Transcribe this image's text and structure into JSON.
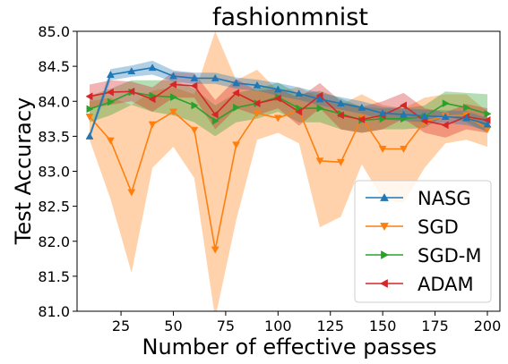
{
  "chart_data": {
    "type": "line",
    "title": "fashionmnist",
    "xlabel": "Number of effective passes",
    "ylabel": "Test Accuracy",
    "xlim": [
      4,
      206
    ],
    "ylim": [
      81.0,
      85.0
    ],
    "xticks": [
      25,
      50,
      75,
      100,
      125,
      150,
      175,
      200
    ],
    "xtick_labels": [
      "25",
      "50",
      "75",
      "100",
      "125",
      "150",
      "175",
      "200"
    ],
    "yticks": [
      81.0,
      81.5,
      82.0,
      82.5,
      83.0,
      83.5,
      84.0,
      84.5,
      85.0
    ],
    "ytick_labels": [
      "81.0",
      "81.5",
      "82.0",
      "82.5",
      "83.0",
      "83.5",
      "84.0",
      "84.5",
      "85.0"
    ],
    "grid": false,
    "legend_position": "bottom-right",
    "x": [
      10,
      20,
      30,
      40,
      50,
      60,
      70,
      80,
      90,
      100,
      110,
      120,
      130,
      140,
      150,
      160,
      170,
      180,
      190,
      200
    ],
    "series": [
      {
        "name": "NASG",
        "color": "#1f77b4",
        "marker": "triangle-up",
        "values": [
          83.5,
          84.38,
          84.43,
          84.48,
          84.36,
          84.33,
          84.33,
          84.26,
          84.23,
          84.17,
          84.11,
          84.03,
          83.97,
          83.91,
          83.83,
          83.81,
          83.79,
          83.78,
          83.76,
          83.67
        ],
        "lower": [
          83.45,
          84.3,
          84.35,
          84.38,
          84.28,
          84.25,
          84.25,
          84.18,
          84.15,
          84.08,
          84.02,
          83.94,
          83.88,
          83.82,
          83.74,
          83.72,
          83.7,
          83.69,
          83.66,
          83.58
        ],
        "upper": [
          83.55,
          84.46,
          84.51,
          84.58,
          84.44,
          84.41,
          84.41,
          84.34,
          84.31,
          84.26,
          84.2,
          84.12,
          84.06,
          84.0,
          83.92,
          83.9,
          83.88,
          83.87,
          83.86,
          83.76
        ]
      },
      {
        "name": "SGD",
        "color": "#ff7f0e",
        "marker": "triangle-down",
        "values": [
          83.78,
          83.44,
          82.7,
          83.67,
          83.85,
          83.59,
          81.88,
          83.38,
          83.83,
          83.76,
          83.87,
          83.15,
          83.13,
          83.76,
          83.32,
          83.32,
          83.71,
          83.79,
          83.8,
          83.6
        ],
        "lower": [
          83.45,
          82.6,
          81.55,
          83.05,
          83.35,
          82.9,
          80.9,
          82.3,
          83.45,
          83.55,
          83.4,
          82.2,
          82.35,
          83.1,
          82.6,
          82.55,
          83.05,
          83.4,
          83.45,
          83.35
        ],
        "upper": [
          84.0,
          84.05,
          83.95,
          84.15,
          84.2,
          84.1,
          85.0,
          84.3,
          84.45,
          84.15,
          84.2,
          84.05,
          83.95,
          84.1,
          83.95,
          83.9,
          84.05,
          84.1,
          84.1,
          83.85
        ]
      },
      {
        "name": "SGD-M",
        "color": "#2ca02c",
        "marker": "triangle-right",
        "values": [
          83.89,
          83.99,
          84.13,
          84.08,
          84.06,
          83.94,
          83.72,
          83.91,
          83.97,
          84.06,
          83.9,
          83.9,
          83.82,
          83.73,
          83.75,
          83.75,
          83.78,
          83.97,
          83.91,
          83.82
        ],
        "lower": [
          83.7,
          83.8,
          83.95,
          83.85,
          83.8,
          83.7,
          83.5,
          83.7,
          83.75,
          83.85,
          83.7,
          83.7,
          83.6,
          83.55,
          83.6,
          83.6,
          83.62,
          83.8,
          83.7,
          83.55
        ],
        "upper": [
          84.08,
          84.18,
          84.3,
          84.3,
          84.3,
          84.18,
          83.94,
          84.12,
          84.18,
          84.27,
          84.1,
          84.15,
          84.04,
          83.92,
          83.9,
          83.9,
          83.94,
          84.14,
          84.12,
          84.1
        ]
      },
      {
        "name": "ADAM",
        "color": "#d62728",
        "marker": "triangle-left",
        "values": [
          84.07,
          84.13,
          84.14,
          84.03,
          84.24,
          84.22,
          83.81,
          84.12,
          83.97,
          84.04,
          83.85,
          84.08,
          83.8,
          83.74,
          83.8,
          83.94,
          83.72,
          83.66,
          83.78,
          83.73
        ],
        "lower": [
          83.9,
          83.95,
          84.0,
          83.85,
          84.05,
          84.05,
          83.6,
          83.9,
          83.8,
          83.9,
          83.65,
          83.9,
          83.6,
          83.55,
          83.6,
          83.75,
          83.55,
          83.48,
          83.6,
          83.55
        ],
        "upper": [
          84.24,
          84.3,
          84.28,
          84.2,
          84.42,
          84.4,
          84.02,
          84.32,
          84.15,
          84.18,
          84.05,
          84.26,
          84.0,
          83.92,
          84.0,
          84.12,
          83.9,
          83.84,
          83.96,
          83.9
        ]
      }
    ]
  }
}
